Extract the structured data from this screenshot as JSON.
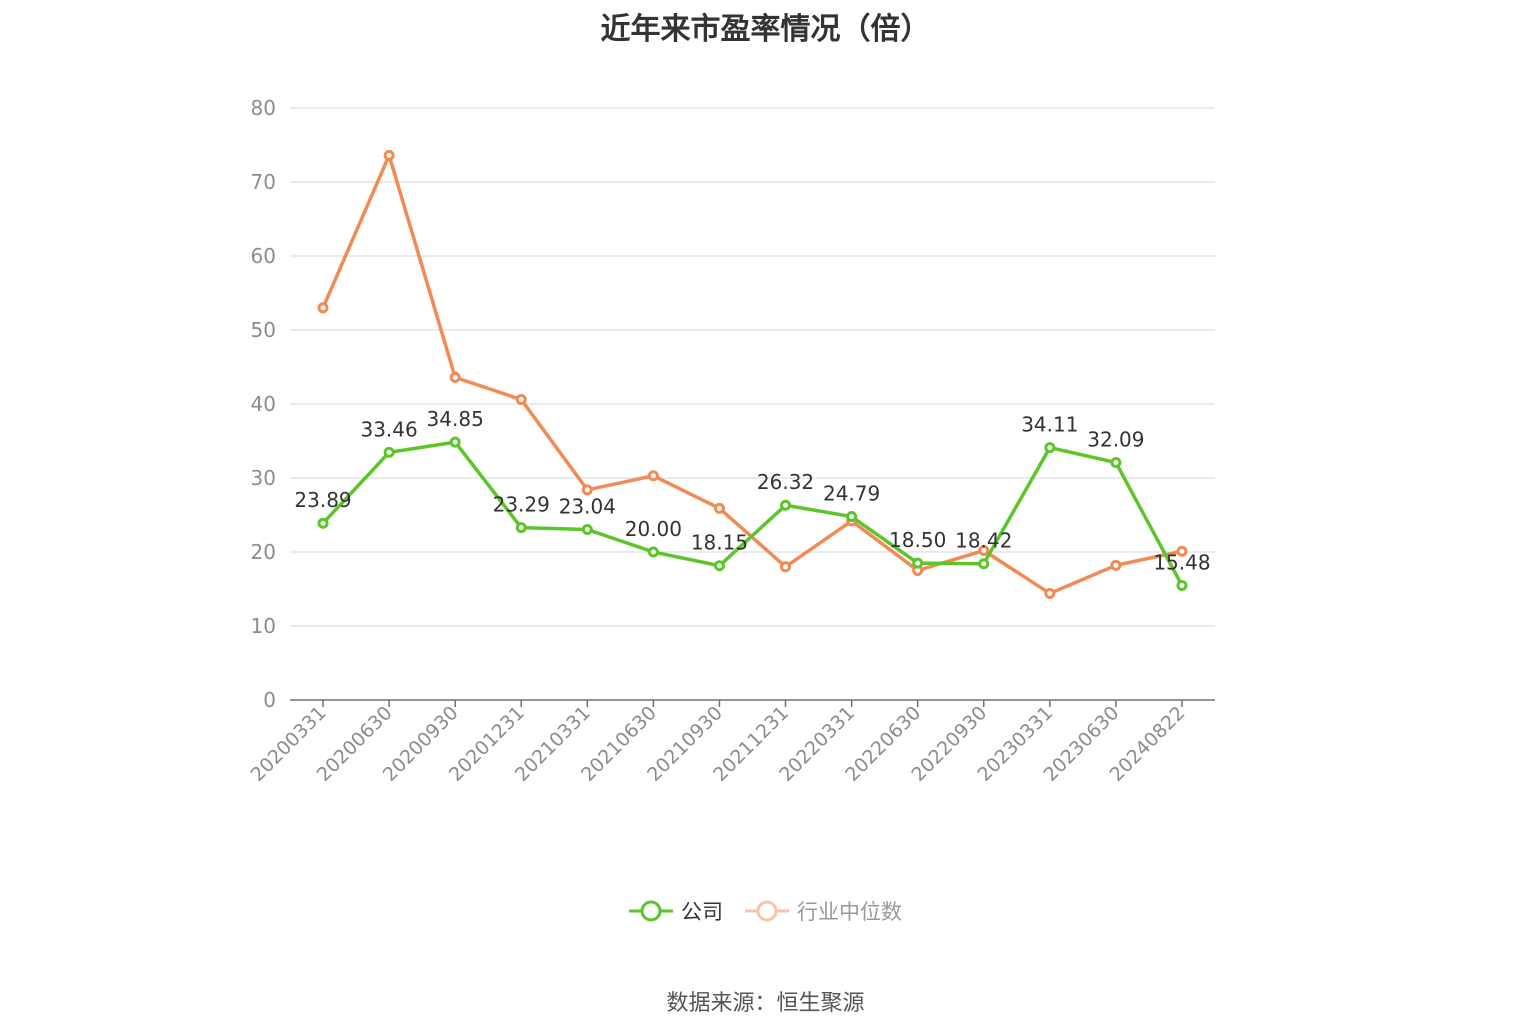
{
  "title": "近年来市盈率情况（倍）",
  "source": "数据来源：恒生聚源",
  "colors": {
    "company": "#5cc52a",
    "industry": "#f28a55",
    "grid": "#e4e4ec",
    "axis": "#6e7079"
  },
  "legend": {
    "company": "公司",
    "industry": "行业中位数"
  },
  "chart_data": {
    "type": "line",
    "title": "近年来市盈率情况（倍）",
    "xlabel": "",
    "ylabel": "",
    "ylim": [
      0,
      80
    ],
    "yticks": [
      0,
      10,
      20,
      30,
      40,
      50,
      60,
      70,
      80
    ],
    "grid": true,
    "legend_position": "bottom",
    "categories": [
      "20200331",
      "20200630",
      "20200930",
      "20201231",
      "20210331",
      "20210630",
      "20210930",
      "20211231",
      "20220331",
      "20220630",
      "20220930",
      "20230331",
      "20230630",
      "20240822"
    ],
    "series": [
      {
        "name": "公司",
        "values": [
          23.89,
          33.46,
          34.85,
          23.29,
          23.04,
          20.0,
          18.15,
          26.32,
          24.79,
          18.5,
          18.42,
          34.11,
          32.09,
          15.48
        ],
        "labels": [
          "23.89",
          "33.46",
          "34.85",
          "23.29",
          "23.04",
          "20.00",
          "18.15",
          "26.32",
          "24.79",
          "18.50",
          "18.42",
          "34.11",
          "32.09",
          "15.48"
        ]
      },
      {
        "name": "行业中位数",
        "values": [
          53.0,
          73.6,
          43.6,
          40.6,
          28.4,
          30.3,
          25.9,
          18.0,
          24.2,
          17.5,
          20.2,
          14.4,
          18.2,
          20.1
        ]
      }
    ]
  }
}
